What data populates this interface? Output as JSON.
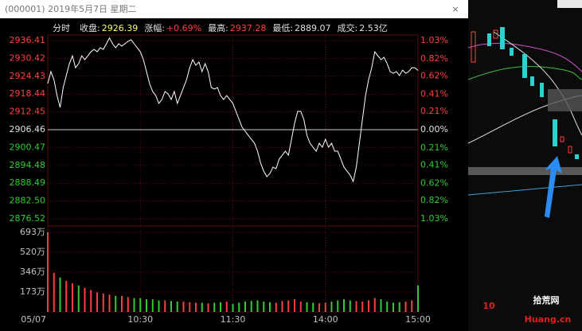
{
  "window": {
    "title": "(000001) 2019年5月7日 星期二",
    "close": "×"
  },
  "info": {
    "mode": "分时",
    "items": [
      {
        "label": "收盘:",
        "value": "2926.39",
        "color": "#ffff66"
      },
      {
        "label": "涨幅:",
        "value": "+0.69%",
        "color": "#ff4040"
      },
      {
        "label": "最高:",
        "value": "2937.28",
        "color": "#ff4040"
      },
      {
        "label": "最低:",
        "value": "2889.07",
        "color": "#e0e0e0"
      },
      {
        "label": "成交:",
        "value": "2.53亿",
        "color": "#e0e0e0"
      }
    ]
  },
  "watermark": {
    "logo": "10",
    "name": "拾荒网",
    "site": "Huang.cn"
  },
  "chart_data": [
    {
      "type": "line",
      "color": "#ffffff",
      "up_color": "#ff4040",
      "down_color": "#33cc33",
      "flat_color": "#e0e0e0",
      "grid": true,
      "xlim": [
        0,
        240
      ],
      "xticks": [
        {
          "value": 0,
          "label": "05/07"
        },
        {
          "value": 60,
          "label": "10:30"
        },
        {
          "value": 120,
          "label": "11:30"
        },
        {
          "value": 180,
          "label": "14:00"
        },
        {
          "value": 240,
          "label": "15:00"
        }
      ],
      "ylim": [
        2876.52,
        2936.41
      ],
      "yticks": [
        2936.41,
        2930.42,
        2924.43,
        2918.44,
        2912.45,
        2906.46,
        2900.47,
        2894.48,
        2888.49,
        {
          "value": 2882.5,
          "label": "2882.50"
        },
        2876.52
      ],
      "y2lim": [
        -1.03,
        1.03
      ],
      "y2ticks": [
        {
          "value": 1.03,
          "label": "1.03%"
        },
        {
          "value": 0.82,
          "label": "0.82%"
        },
        {
          "value": 0.62,
          "label": "0.62%"
        },
        {
          "value": 0.41,
          "label": "0.41%"
        },
        {
          "value": 0.21,
          "label": "0.21%"
        },
        {
          "value": 0,
          "label": "0.00%"
        },
        {
          "value": -0.21,
          "label": "0.21%"
        },
        {
          "value": -0.41,
          "label": "0.41%"
        },
        {
          "value": -0.62,
          "label": "0.62%"
        },
        {
          "value": -0.82,
          "label": "0.82%"
        },
        {
          "value": -1.03,
          "label": "1.03%"
        }
      ],
      "x": [
        0,
        2,
        4,
        6,
        8,
        10,
        12,
        14,
        16,
        18,
        20,
        22,
        24,
        26,
        28,
        30,
        32,
        34,
        36,
        38,
        40,
        42,
        44,
        46,
        48,
        50,
        52,
        54,
        56,
        58,
        60,
        62,
        64,
        66,
        68,
        70,
        72,
        74,
        76,
        78,
        80,
        82,
        84,
        86,
        88,
        90,
        92,
        94,
        96,
        98,
        100,
        102,
        104,
        106,
        108,
        110,
        112,
        114,
        116,
        118,
        120,
        122,
        124,
        126,
        128,
        130,
        132,
        134,
        136,
        138,
        140,
        142,
        144,
        146,
        148,
        150,
        152,
        154,
        156,
        158,
        160,
        162,
        164,
        166,
        168,
        170,
        172,
        174,
        176,
        178,
        180,
        182,
        184,
        186,
        188,
        190,
        192,
        194,
        196,
        198,
        200,
        202,
        204,
        206,
        208,
        210,
        212,
        214,
        216,
        218,
        220,
        222,
        224,
        226,
        228,
        230,
        232,
        234,
        236,
        238,
        240
      ],
      "values": [
        2921.97,
        2925.98,
        2923.3,
        2917.96,
        2913.95,
        2920.63,
        2924.64,
        2928.65,
        2931.3,
        2927.3,
        2928.65,
        2931.3,
        2930,
        2931.3,
        2932.66,
        2933.46,
        2932.66,
        2934,
        2933.46,
        2935.34,
        2937.28,
        2935.34,
        2934,
        2935.34,
        2934.54,
        2935.34,
        2936.14,
        2936.67,
        2935.34,
        2934,
        2932.66,
        2930,
        2925.98,
        2921.97,
        2919.29,
        2917.96,
        2915.28,
        2916.62,
        2919.29,
        2918.5,
        2916.62,
        2919.29,
        2915.28,
        2917.96,
        2920.63,
        2923.3,
        2927.3,
        2930,
        2928.1,
        2929.2,
        2925.98,
        2928.65,
        2925.98,
        2920.63,
        2920.1,
        2920.63,
        2917.96,
        2916.62,
        2917.96,
        2916.62,
        2915.28,
        2912.61,
        2909.94,
        2907.26,
        2905.93,
        2904.59,
        2903.25,
        2901.91,
        2899.24,
        2895.23,
        2892.56,
        2890.68,
        2891.75,
        2893.89,
        2893.36,
        2896.57,
        2897.9,
        2899.24,
        2897.9,
        2903.25,
        2908.6,
        2912.61,
        2912.61,
        2909.94,
        2904.59,
        2901.91,
        2900.58,
        2899.24,
        2901.91,
        2900.58,
        2903.25,
        2900.58,
        2901.91,
        2899.24,
        2899.24,
        2896.57,
        2893.89,
        2892.56,
        2891.22,
        2889.07,
        2893.89,
        2901.91,
        2909.94,
        2917.96,
        2923.3,
        2927.3,
        2932.66,
        2931.3,
        2930,
        2930.8,
        2928.65,
        2925.98,
        2925.44,
        2925.98,
        2924.64,
        2926.51,
        2925.44,
        2925.98,
        2927.3,
        2927.3,
        2926.39
      ]
    },
    {
      "type": "bar",
      "up_color": "#ff4040",
      "down_color": "#33cc33",
      "grid": true,
      "xlim": [
        0,
        240
      ],
      "ylim": [
        0,
        693
      ],
      "yticks": [
        {
          "value": 693,
          "label": "693万"
        },
        {
          "value": 520,
          "label": "520万"
        },
        {
          "value": 346,
          "label": "346万"
        },
        {
          "value": 173,
          "label": "173万"
        }
      ],
      "x": [
        0,
        4,
        8,
        12,
        16,
        20,
        24,
        28,
        32,
        36,
        40,
        44,
        48,
        52,
        56,
        60,
        64,
        68,
        72,
        76,
        80,
        84,
        88,
        92,
        96,
        100,
        104,
        108,
        112,
        116,
        120,
        124,
        128,
        132,
        136,
        140,
        144,
        148,
        152,
        156,
        160,
        164,
        168,
        172,
        176,
        180,
        184,
        188,
        192,
        196,
        200,
        204,
        208,
        212,
        216,
        220,
        224,
        228,
        232,
        236,
        240
      ],
      "values": [
        693,
        340,
        300,
        270,
        250,
        230,
        210,
        190,
        170,
        160,
        150,
        140,
        140,
        130,
        120,
        120,
        110,
        110,
        100,
        100,
        95,
        90,
        90,
        85,
        80,
        80,
        75,
        80,
        85,
        90,
        70,
        80,
        90,
        95,
        100,
        90,
        85,
        80,
        95,
        100,
        110,
        90,
        85,
        80,
        75,
        80,
        90,
        100,
        110,
        100,
        95,
        90,
        100,
        120,
        110,
        90,
        80,
        85,
        90,
        100,
        230
      ]
    }
  ]
}
